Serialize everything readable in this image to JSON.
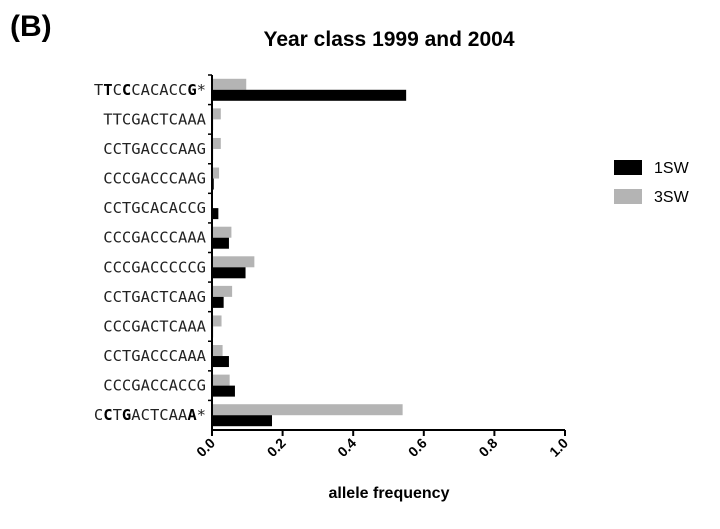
{
  "panel_label": "(B)",
  "chart_data": {
    "type": "bar",
    "orientation": "horizontal",
    "title": "Year class 1999 and 2004",
    "xlabel": "allele frequency",
    "ylabel": "",
    "xlim": [
      0,
      1.0
    ],
    "xticks": [
      "0.0",
      "0.2",
      "0.4",
      "0.6",
      "0.8",
      "1.0"
    ],
    "categories": [
      "TTCCCACACCG*",
      "TTCGACTCAAA",
      "CCTGACCCAAG",
      "CCCGACCCAAG",
      "CCTGCACACCG",
      "CCCGACCCAAA",
      "CCCGACCCCCG",
      "CCTGACTCAAG",
      "CCCGACTCAAA",
      "CCTGACCCAAA",
      "CCCGACCACCG",
      "CCTGACTCAAA*"
    ],
    "bold_positions": [
      [
        1,
        3,
        10
      ],
      [],
      [],
      [],
      [],
      [],
      [],
      [],
      [],
      [],
      [],
      [
        1,
        3,
        10
      ]
    ],
    "series": [
      {
        "name": "1SW",
        "color": "#000000",
        "values": [
          0.55,
          0.003,
          0.003,
          0.005,
          0.018,
          0.048,
          0.095,
          0.033,
          0.003,
          0.048,
          0.065,
          0.17
        ]
      },
      {
        "name": "3SW",
        "color": "#b4b4b4",
        "values": [
          0.097,
          0.025,
          0.025,
          0.02,
          0.0,
          0.055,
          0.12,
          0.057,
          0.027,
          0.03,
          0.05,
          0.54
        ]
      }
    ],
    "legend_position": "right"
  }
}
